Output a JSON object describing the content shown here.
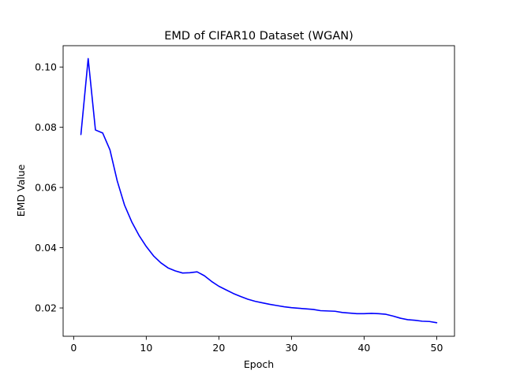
{
  "chart_data": {
    "type": "line",
    "title": "EMD of CIFAR10 Dataset (WGAN)",
    "xlabel": "Epoch",
    "ylabel": "EMD Value",
    "xlim": [
      -1.45,
      52.45
    ],
    "ylim": [
      0.0106,
      0.1071
    ],
    "xticks": [
      0,
      10,
      20,
      30,
      40,
      50
    ],
    "xtick_labels": [
      "0",
      "10",
      "20",
      "30",
      "40",
      "50"
    ],
    "yticks": [
      0.02,
      0.04,
      0.06,
      0.08,
      0.1
    ],
    "ytick_labels": [
      "0.02",
      "0.04",
      "0.06",
      "0.08",
      "0.10"
    ],
    "grid": false,
    "legend": "none",
    "series": [
      {
        "color": "#0000ff",
        "x": [
          1,
          2,
          3,
          4,
          5,
          6,
          7,
          8,
          9,
          10,
          11,
          12,
          13,
          14,
          15,
          16,
          17,
          18,
          19,
          20,
          21,
          22,
          23,
          24,
          25,
          26,
          27,
          28,
          29,
          30,
          31,
          32,
          33,
          34,
          35,
          36,
          37,
          38,
          39,
          40,
          41,
          42,
          43,
          44,
          45,
          46,
          47,
          48,
          49,
          50
        ],
        "values": [
          0.0776,
          0.1028,
          0.0791,
          0.0781,
          0.0725,
          0.0622,
          0.0542,
          0.0486,
          0.0441,
          0.0404,
          0.0373,
          0.035,
          0.0333,
          0.0323,
          0.0316,
          0.0317,
          0.032,
          0.0307,
          0.0288,
          0.0272,
          0.026,
          0.0248,
          0.0238,
          0.0229,
          0.0222,
          0.0217,
          0.0212,
          0.0208,
          0.0204,
          0.0201,
          0.0199,
          0.0197,
          0.0195,
          0.0191,
          0.019,
          0.0189,
          0.0185,
          0.0183,
          0.0181,
          0.0181,
          0.0182,
          0.0181,
          0.0179,
          0.0173,
          0.0166,
          0.0161,
          0.0159,
          0.0156,
          0.0155,
          0.0151
        ]
      }
    ]
  }
}
